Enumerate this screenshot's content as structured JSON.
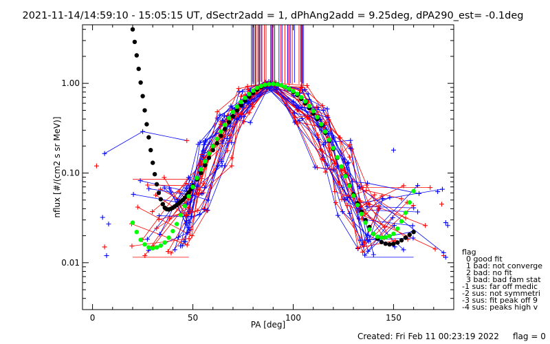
{
  "window": {
    "title": "2021-11-14/14:59:10 - 15:05:15 UT, dSectr2add = 1, dPhAng2add = 9.25deg, dPA290_est=  -0.1deg"
  },
  "footer": {
    "created": "Created: Fri Feb 11 00:23:19 2022",
    "flag": "flag = 0"
  },
  "colors": {
    "red": "#ff0000",
    "blue": "#0000ff",
    "black": "#000000",
    "green": "#00ff00"
  },
  "chart_data": {
    "type": "line",
    "title": "2021-11-14/14:59:10 - 15:05:15 UT, dSectr2add = 1, dPhAng2add = 9.25deg, dPA290_est=  -0.1deg",
    "xlabel": "PA [deg]",
    "ylabel": "nflux [#/(cm2 s sr MeV)]",
    "xlim": [
      -5,
      180
    ],
    "ylim": [
      0.003,
      4.5
    ],
    "yscale": "log",
    "x_ticks": [
      0,
      50,
      100,
      150
    ],
    "y_ticks": [
      0.01,
      0.1,
      1.0
    ],
    "y_tick_labels": [
      "0.01",
      "0.10",
      "1.00"
    ],
    "legend": {
      "title": "flag",
      "placement": "right",
      "entries": [
        "0 good fit",
        "1 bad: not converge",
        "2 bad: no fit",
        "3 bad: bad fam stat",
        "-1 sus: far off medic",
        "-2 sus: not symmetri",
        "-3 sus: fit peak off 9",
        "-4 sus: peaks high v"
      ]
    },
    "series": [
      {
        "color": "black",
        "style": "thick-dots",
        "x": [
          20,
          21,
          22,
          23,
          24,
          25,
          26,
          27,
          28,
          29,
          30,
          31,
          32,
          33,
          34,
          35,
          36,
          37,
          38,
          39,
          40,
          41,
          42,
          43,
          44,
          45,
          46,
          47,
          48,
          49,
          50,
          52,
          54,
          56,
          58,
          60,
          62,
          64,
          66,
          68,
          70,
          72,
          74,
          76,
          78,
          80,
          82,
          84,
          86,
          88,
          90,
          92,
          94,
          96,
          98,
          100,
          102,
          104,
          106,
          108,
          110,
          112,
          114,
          116,
          118,
          120,
          122,
          124,
          126,
          128,
          130,
          132,
          134,
          136,
          138,
          140,
          142,
          144,
          146,
          148,
          150,
          152,
          154,
          156,
          158,
          160
        ],
        "y": [
          4.0,
          2.9,
          2.05,
          1.45,
          1.02,
          0.72,
          0.5,
          0.35,
          0.25,
          0.18,
          0.13,
          0.097,
          0.075,
          0.06,
          0.051,
          0.045,
          0.041,
          0.0395,
          0.0392,
          0.0398,
          0.041,
          0.0425,
          0.044,
          0.046,
          0.048,
          0.05,
          0.053,
          0.057,
          0.061,
          0.066,
          0.072,
          0.085,
          0.1,
          0.122,
          0.148,
          0.18,
          0.215,
          0.26,
          0.31,
          0.37,
          0.43,
          0.5,
          0.57,
          0.64,
          0.71,
          0.78,
          0.85,
          0.91,
          0.955,
          0.98,
          0.99,
          0.98,
          0.95,
          0.91,
          0.86,
          0.8,
          0.74,
          0.67,
          0.6,
          0.53,
          0.46,
          0.4,
          0.34,
          0.28,
          0.23,
          0.185,
          0.148,
          0.118,
          0.093,
          0.073,
          0.058,
          0.046,
          0.037,
          0.03,
          0.025,
          0.021,
          0.0185,
          0.017,
          0.0163,
          0.016,
          0.0162,
          0.0168,
          0.0178,
          0.019,
          0.0205,
          0.022
        ]
      },
      {
        "color": "green",
        "style": "thick-dots",
        "x": [
          20,
          22,
          24,
          26,
          28,
          30,
          32,
          34,
          36,
          38,
          40,
          42,
          44,
          46,
          48,
          50,
          52,
          54,
          56,
          58,
          60,
          62,
          64,
          66,
          68,
          70,
          72,
          74,
          76,
          78,
          80,
          82,
          84,
          86,
          88,
          90,
          92,
          94,
          96,
          98,
          100,
          102,
          104,
          106,
          108,
          110,
          112,
          114,
          116,
          118,
          120,
          122,
          124,
          126,
          128,
          130,
          132,
          134,
          136,
          138,
          140,
          142,
          144,
          146,
          148,
          150,
          152,
          154,
          156,
          158,
          160
        ],
        "y": [
          0.028,
          0.022,
          0.018,
          0.016,
          0.0148,
          0.0145,
          0.0148,
          0.0155,
          0.0168,
          0.019,
          0.0225,
          0.027,
          0.034,
          0.043,
          0.055,
          0.07,
          0.088,
          0.11,
          0.135,
          0.165,
          0.2,
          0.24,
          0.29,
          0.345,
          0.41,
          0.48,
          0.55,
          0.62,
          0.69,
          0.76,
          0.83,
          0.89,
          0.935,
          0.965,
          0.98,
          0.985,
          0.975,
          0.95,
          0.915,
          0.87,
          0.82,
          0.765,
          0.7,
          0.63,
          0.56,
          0.49,
          0.42,
          0.35,
          0.29,
          0.235,
          0.19,
          0.15,
          0.118,
          0.092,
          0.072,
          0.056,
          0.044,
          0.035,
          0.028,
          0.0235,
          0.021,
          0.0195,
          0.019,
          0.0192,
          0.0198,
          0.021,
          0.024,
          0.029,
          0.036,
          0.047,
          0.063
        ]
      }
    ]
  }
}
